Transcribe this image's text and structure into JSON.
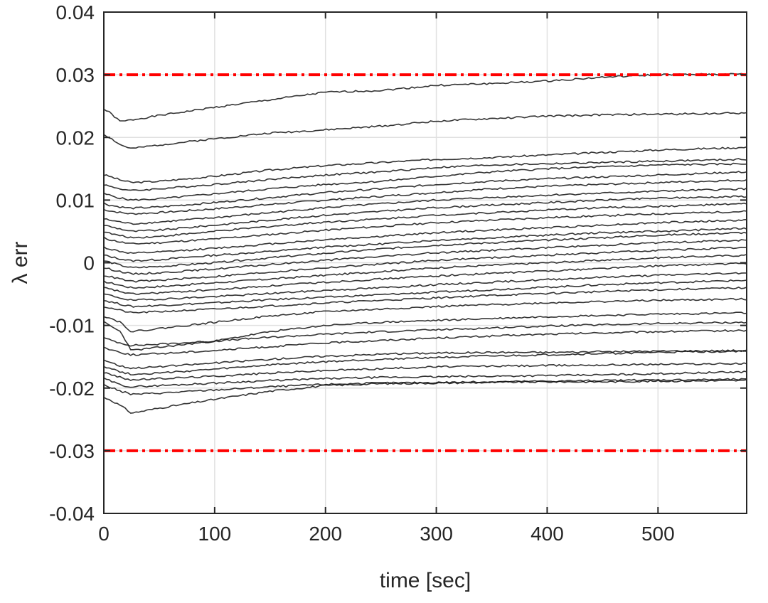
{
  "chart_data": {
    "type": "line",
    "title": "",
    "xlabel": "time [sec]",
    "ylabel": "λ err",
    "xlim": [
      0,
      580
    ],
    "ylim": [
      -0.04,
      0.04
    ],
    "grid": true,
    "legend": "none",
    "xticks": [
      0,
      100,
      200,
      300,
      400,
      500
    ],
    "xtick_labels": [
      "0",
      "100",
      "200",
      "300",
      "400",
      "500"
    ],
    "yticks": [
      -0.04,
      -0.03,
      -0.02,
      -0.01,
      0,
      0.01,
      0.02,
      0.03,
      0.04
    ],
    "ytick_labels": [
      "-0.04",
      "-0.03",
      "-0.02",
      "-0.01",
      "0",
      "0.01",
      "0.02",
      "0.03",
      "0.04"
    ],
    "series_color": "#111111",
    "bound_color": "#ff0000",
    "bounds": [
      {
        "y": 0.03
      },
      {
        "y": -0.03
      }
    ],
    "x": [
      0,
      5,
      15,
      25,
      50,
      100,
      150,
      200,
      250,
      300,
      350,
      400,
      450,
      500,
      580
    ],
    "series": [
      {
        "values": [
          0.0245,
          0.024,
          0.0225,
          0.0228,
          0.0235,
          0.0248,
          0.026,
          0.0272,
          0.0275,
          0.0283,
          0.0286,
          0.029,
          0.0296,
          0.03,
          0.0301
        ]
      },
      {
        "values": [
          0.0205,
          0.02,
          0.0188,
          0.0182,
          0.0188,
          0.0198,
          0.0207,
          0.0212,
          0.0218,
          0.0226,
          0.023,
          0.0234,
          0.0236,
          0.0237,
          0.0239
        ]
      },
      {
        "values": [
          0.014,
          0.0138,
          0.0132,
          0.0128,
          0.013,
          0.0138,
          0.0148,
          0.0155,
          0.016,
          0.0165,
          0.0168,
          0.0172,
          0.0176,
          0.018,
          0.0184
        ]
      },
      {
        "values": [
          0.0125,
          0.0122,
          0.0118,
          0.0115,
          0.0118,
          0.0125,
          0.0133,
          0.014,
          0.0145,
          0.0152,
          0.0156,
          0.0158,
          0.016,
          0.0162,
          0.0165
        ]
      },
      {
        "values": [
          0.011,
          0.0108,
          0.0103,
          0.01,
          0.0102,
          0.011,
          0.0118,
          0.0125,
          0.013,
          0.0138,
          0.0145,
          0.015,
          0.0153,
          0.0156,
          0.0158
        ]
      },
      {
        "values": [
          0.0095,
          0.0092,
          0.0089,
          0.0087,
          0.0089,
          0.0096,
          0.0104,
          0.0112,
          0.0118,
          0.0125,
          0.013,
          0.0134,
          0.0137,
          0.014,
          0.0145
        ]
      },
      {
        "values": [
          0.0085,
          0.0083,
          0.008,
          0.0078,
          0.008,
          0.0086,
          0.0093,
          0.01,
          0.0106,
          0.0112,
          0.0118,
          0.0122,
          0.0125,
          0.0128,
          0.0132
        ]
      },
      {
        "values": [
          0.007,
          0.0068,
          0.0065,
          0.0062,
          0.0065,
          0.0072,
          0.008,
          0.0088,
          0.0094,
          0.01,
          0.0104,
          0.0108,
          0.0111,
          0.0114,
          0.0118
        ]
      },
      {
        "values": [
          0.006,
          0.0058,
          0.0054,
          0.005,
          0.0052,
          0.006,
          0.0068,
          0.0076,
          0.0082,
          0.0088,
          0.0092,
          0.0096,
          0.01,
          0.0103,
          0.0106
        ]
      },
      {
        "values": [
          0.005,
          0.0047,
          0.0043,
          0.004,
          0.0042,
          0.005,
          0.0058,
          0.0065,
          0.007,
          0.0076,
          0.008,
          0.0084,
          0.0088,
          0.009,
          0.0094
        ]
      },
      {
        "values": [
          0.004,
          0.0037,
          0.0033,
          0.003,
          0.0032,
          0.0038,
          0.0045,
          0.0052,
          0.0058,
          0.0064,
          0.0068,
          0.0072,
          0.0075,
          0.0078,
          0.0082
        ]
      },
      {
        "values": [
          0.0025,
          0.0022,
          0.0018,
          0.0015,
          0.0017,
          0.0023,
          0.003,
          0.0037,
          0.0042,
          0.0048,
          0.0052,
          0.0056,
          0.006,
          0.0064,
          0.0068
        ]
      },
      {
        "values": [
          0.0012,
          0.001,
          0.0006,
          0.0003,
          0.0005,
          0.0012,
          0.0018,
          0.0025,
          0.003,
          0.0036,
          0.004,
          0.0044,
          0.0048,
          0.005,
          0.0055
        ]
      },
      {
        "values": [
          0.0003,
          0.0001,
          -0.0004,
          -0.0008,
          -0.0006,
          0.0,
          0.0008,
          0.0015,
          0.0022,
          0.0028,
          0.0032,
          0.0036,
          0.004,
          0.0044,
          0.0048
        ]
      },
      {
        "values": [
          -0.0008,
          -0.001,
          -0.0014,
          -0.0018,
          -0.0016,
          -0.001,
          -0.0003,
          0.0004,
          0.001,
          0.0016,
          0.002,
          0.0024,
          0.0028,
          0.0032,
          0.0036
        ]
      },
      {
        "values": [
          -0.002,
          -0.0022,
          -0.0026,
          -0.003,
          -0.0028,
          -0.0022,
          -0.0015,
          -0.0008,
          -0.0002,
          0.0004,
          0.0008,
          0.0012,
          0.0016,
          0.002,
          0.0024
        ]
      },
      {
        "values": [
          -0.003,
          -0.0032,
          -0.0036,
          -0.004,
          -0.0038,
          -0.0032,
          -0.0026,
          -0.002,
          -0.0014,
          -0.0008,
          -0.0004,
          0.0,
          0.0004,
          0.0008,
          0.0012
        ]
      },
      {
        "values": [
          -0.004,
          -0.0042,
          -0.0046,
          -0.005,
          -0.0048,
          -0.0043,
          -0.0037,
          -0.0031,
          -0.0026,
          -0.0021,
          -0.0017,
          -0.0013,
          -0.0009,
          -0.0005,
          -0.0001
        ]
      },
      {
        "values": [
          -0.005,
          -0.0052,
          -0.0056,
          -0.006,
          -0.0058,
          -0.0054,
          -0.0049,
          -0.0044,
          -0.004,
          -0.0035,
          -0.0031,
          -0.0027,
          -0.0023,
          -0.002,
          -0.0016
        ]
      },
      {
        "values": [
          -0.006,
          -0.0062,
          -0.0066,
          -0.007,
          -0.0068,
          -0.0064,
          -0.0059,
          -0.0055,
          -0.0051,
          -0.0047,
          -0.0043,
          -0.0039,
          -0.0035,
          -0.0032,
          -0.0028
        ]
      },
      {
        "values": [
          -0.007,
          -0.0072,
          -0.0076,
          -0.008,
          -0.0078,
          -0.0074,
          -0.0069,
          -0.0064,
          -0.006,
          -0.0056,
          -0.0052,
          -0.0049,
          -0.0046,
          -0.0043,
          -0.004
        ]
      },
      {
        "values": [
          -0.0085,
          -0.0088,
          -0.0095,
          -0.011,
          -0.0105,
          -0.0095,
          -0.0085,
          -0.0078,
          -0.0074,
          -0.007,
          -0.0067,
          -0.0064,
          -0.0062,
          -0.006,
          -0.0058
        ]
      },
      {
        "values": [
          -0.0095,
          -0.01,
          -0.011,
          -0.014,
          -0.0135,
          -0.0125,
          -0.011,
          -0.01,
          -0.0095,
          -0.0092,
          -0.0089,
          -0.0086,
          -0.0084,
          -0.0082,
          -0.008
        ]
      },
      {
        "values": [
          -0.012,
          -0.0123,
          -0.0128,
          -0.0132,
          -0.013,
          -0.0125,
          -0.0119,
          -0.0114,
          -0.011,
          -0.0107,
          -0.0104,
          -0.0101,
          -0.0099,
          -0.0097,
          -0.0095
        ]
      },
      {
        "values": [
          -0.0135,
          -0.0138,
          -0.0143,
          -0.0147,
          -0.0145,
          -0.014,
          -0.0134,
          -0.0128,
          -0.0124,
          -0.012,
          -0.0117,
          -0.0114,
          -0.0112,
          -0.011,
          -0.0108
        ]
      },
      {
        "values": [
          -0.0155,
          -0.0158,
          -0.0165,
          -0.0168,
          -0.0166,
          -0.016,
          -0.0154,
          -0.0149,
          -0.0146,
          -0.0144,
          -0.0143,
          -0.0143,
          -0.0142,
          -0.0141,
          -0.014
        ]
      },
      {
        "values": [
          -0.0165,
          -0.0168,
          -0.0174,
          -0.0178,
          -0.0176,
          -0.017,
          -0.0163,
          -0.0158,
          -0.0154,
          -0.0151,
          -0.0149,
          -0.0147,
          -0.0145,
          -0.0143,
          -0.0141
        ]
      },
      {
        "values": [
          -0.0175,
          -0.0178,
          -0.0183,
          -0.0187,
          -0.0185,
          -0.0181,
          -0.0176,
          -0.0172,
          -0.0169,
          -0.0166,
          -0.0165,
          -0.0164,
          -0.0163,
          -0.0162,
          -0.0161
        ]
      },
      {
        "values": [
          -0.0185,
          -0.0188,
          -0.0195,
          -0.0198,
          -0.0196,
          -0.0192,
          -0.0188,
          -0.0185,
          -0.0183,
          -0.0182,
          -0.0181,
          -0.018,
          -0.0179,
          -0.0177,
          -0.0174
        ]
      },
      {
        "values": [
          -0.0195,
          -0.0198,
          -0.0205,
          -0.021,
          -0.0208,
          -0.0203,
          -0.0198,
          -0.0194,
          -0.0192,
          -0.0191,
          -0.019,
          -0.0189,
          -0.0188,
          -0.0187,
          -0.0186
        ]
      },
      {
        "values": [
          -0.0215,
          -0.0218,
          -0.0228,
          -0.024,
          -0.0232,
          -0.0218,
          -0.0205,
          -0.0196,
          -0.0193,
          -0.0192,
          -0.0191,
          -0.019,
          -0.019,
          -0.0189,
          -0.0188
        ]
      }
    ]
  }
}
